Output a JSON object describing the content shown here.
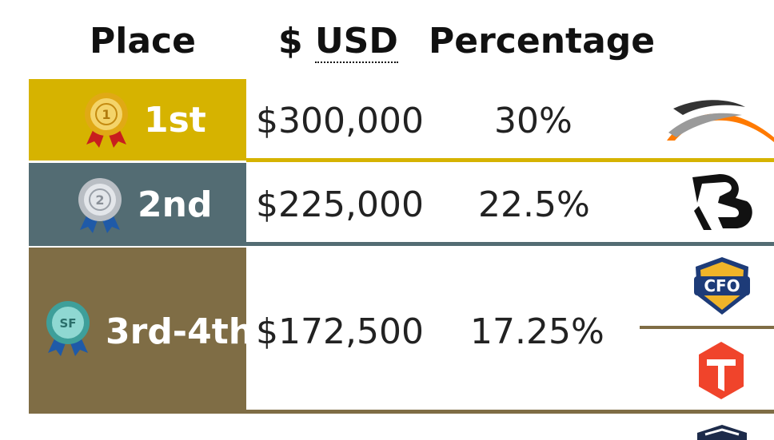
{
  "table": {
    "headers": {
      "place": "Place",
      "usd_symbol": "$",
      "usd_abbr": "USD",
      "percentage": "Percentage"
    },
    "rows": [
      {
        "place": "1st",
        "usd": "$300,000",
        "percentage": "30%",
        "medal": "gold-medal-icon",
        "color": "#d6b300",
        "teams": [
          "orange-swoosh-team-logo"
        ]
      },
      {
        "place": "2nd",
        "usd": "$225,000",
        "percentage": "22.5%",
        "medal": "silver-medal-icon",
        "color": "#536c73",
        "teams": [
          "kr-team-logo"
        ]
      },
      {
        "place": "3rd-4th",
        "usd": "$172,500",
        "percentage": "17.25%",
        "medal": "semifinal-medal-icon",
        "color": "#7f6d45",
        "teams": [
          "cfo-team-logo",
          "red-t-team-logo"
        ]
      }
    ]
  }
}
